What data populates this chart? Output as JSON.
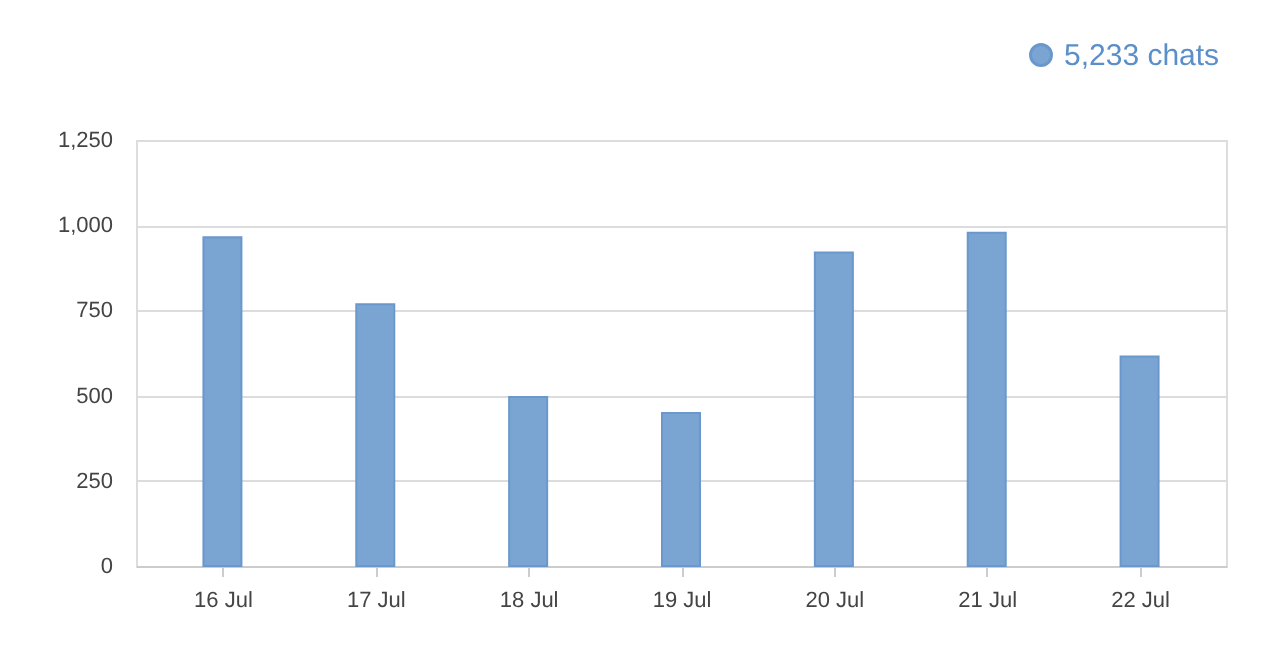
{
  "chart_data": {
    "type": "bar",
    "categories": [
      "16 Jul",
      "17 Jul",
      "18 Jul",
      "19 Jul",
      "20 Jul",
      "21 Jul",
      "22 Jul"
    ],
    "series": [
      {
        "name": "5,233 chats",
        "color": "#7aa5d3",
        "values": [
          965,
          768,
          496,
          449,
          920,
          978,
          615
        ]
      }
    ],
    "ylim": [
      0,
      1250
    ],
    "yticks": [
      {
        "value": 0,
        "label": "0"
      },
      {
        "value": 250,
        "label": "250"
      },
      {
        "value": 500,
        "label": "500"
      },
      {
        "value": 750,
        "label": "750"
      },
      {
        "value": 1000,
        "label": "1,000"
      },
      {
        "value": 1250,
        "label": "1,250"
      }
    ],
    "grid": "y",
    "legend": "top right"
  }
}
